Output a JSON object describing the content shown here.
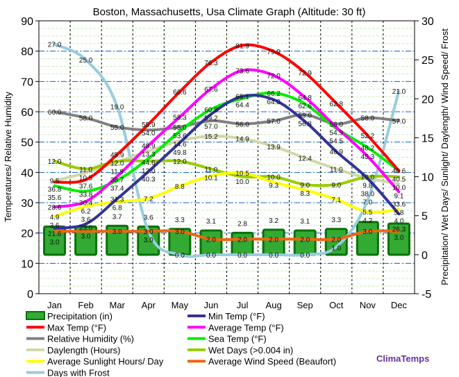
{
  "chart_data": {
    "type": "line",
    "title": "Boston, Massachusetts, Usa Climate Graph (Altitude: 30 ft)",
    "ylabel_left": "Temperatures/ Relative Humidity",
    "ylabel_right": "Precipitation/ Wet Days/ Sunlight/ Daylength/ Wind Speed/ Frost",
    "ylim_left": [
      0,
      90
    ],
    "ylim_right": [
      -5,
      30
    ],
    "yticks_left": [
      "0",
      "10",
      "20",
      "30",
      "40",
      "50",
      "60",
      "70",
      "80",
      "90"
    ],
    "yticks_right": [
      "-5",
      "0",
      "5",
      "10",
      "15",
      "20",
      "25",
      "30"
    ],
    "categories": [
      "Jan",
      "Feb",
      "Mar",
      "Apr",
      "May",
      "Jun",
      "Jul",
      "Aug",
      "Sep",
      "Oct",
      "Nov",
      "Dec"
    ],
    "grid": true,
    "legend_position": "bottom",
    "watermark": "ClimaTemps",
    "series": [
      {
        "name": "Precipitation (in)",
        "axis": "right",
        "kind": "bar",
        "color": "#1a8a1a",
        "values": [
          3.6,
          3.6,
          3.7,
          3.6,
          3.3,
          3.1,
          2.8,
          3.2,
          3.1,
          3.3,
          4.2,
          4.0
        ]
      },
      {
        "name": "Min Temp (°F)",
        "axis": "left",
        "color": "#333399",
        "values": [
          21.6,
          23.0,
          31.3,
          40.3,
          49.8,
          59.2,
          65.1,
          64.0,
          56.8,
          46.9,
          38.0,
          26.3
        ]
      },
      {
        "name": "Max Temp (°F)",
        "axis": "left",
        "color": "#ff0000",
        "values": [
          36.8,
          37.6,
          45.9,
          55.9,
          66.6,
          76.3,
          81.9,
          79.9,
          72.9,
          62.8,
          52.2,
          40.5
        ]
      },
      {
        "name": "Average Temp (°F)",
        "axis": "left",
        "color": "#ff00ff",
        "values": [
          28.6,
          30.4,
          38.7,
          48.9,
          58.3,
          67.6,
          73.6,
          72.0,
          64.8,
          54.9,
          45.3,
          33.6
        ]
      },
      {
        "name": "Relative Humidity (%)",
        "axis": "left",
        "color": "#808080",
        "values": [
          60.0,
          58.0,
          55.0,
          54.0,
          55.0,
          57.0,
          56.0,
          57.0,
          59.0,
          56.0,
          58.0,
          57.0
        ]
      },
      {
        "name": "Sea Temp (°F)",
        "axis": "left",
        "color": "#00ee00",
        "values": [
          35.6,
          33.8,
          37.4,
          44.6,
          53.6,
          60.8,
          64.4,
          66.2,
          62.6,
          54.5,
          48.2,
          40.6
        ]
      },
      {
        "name": "Daylength (Hours)",
        "axis": "right",
        "color": "#d0d8a8",
        "values": [
          9.5,
          10.5,
          11.9,
          13.3,
          14.6,
          15.2,
          14.9,
          13.9,
          12.4,
          11.0,
          9.8,
          9.1
        ]
      },
      {
        "name": "Wet Days (>0.004 in)",
        "axis": "right",
        "color": "#99cc00",
        "values": [
          12.0,
          11.0,
          12.0,
          12.0,
          12.0,
          11.0,
          10.0,
          10.0,
          9.0,
          9.0,
          10.0,
          10.0
        ]
      },
      {
        "name": "Average Sunlight Hours/ Day",
        "axis": "right",
        "color": "#ffff00",
        "values": [
          4.9,
          6.2,
          6.8,
          7.2,
          8.8,
          10.1,
          10.5,
          9.3,
          8.3,
          7.1,
          5.5,
          5.8
        ]
      },
      {
        "name": "Average Wind Speed (Beaufort)",
        "axis": "right",
        "color": "#ee6611",
        "values": [
          3.0,
          3.0,
          3.0,
          3.0,
          3.0,
          2.0,
          2.0,
          2.0,
          2.0,
          2.0,
          3.0,
          3.0
        ]
      },
      {
        "name": "Days with Frost",
        "axis": "right",
        "color": "#99ccdd",
        "values": [
          27.0,
          25.0,
          19.0,
          3.0,
          0.0,
          0.0,
          0.0,
          0.0,
          0.0,
          1.0,
          7.0,
          21.0
        ]
      }
    ]
  }
}
